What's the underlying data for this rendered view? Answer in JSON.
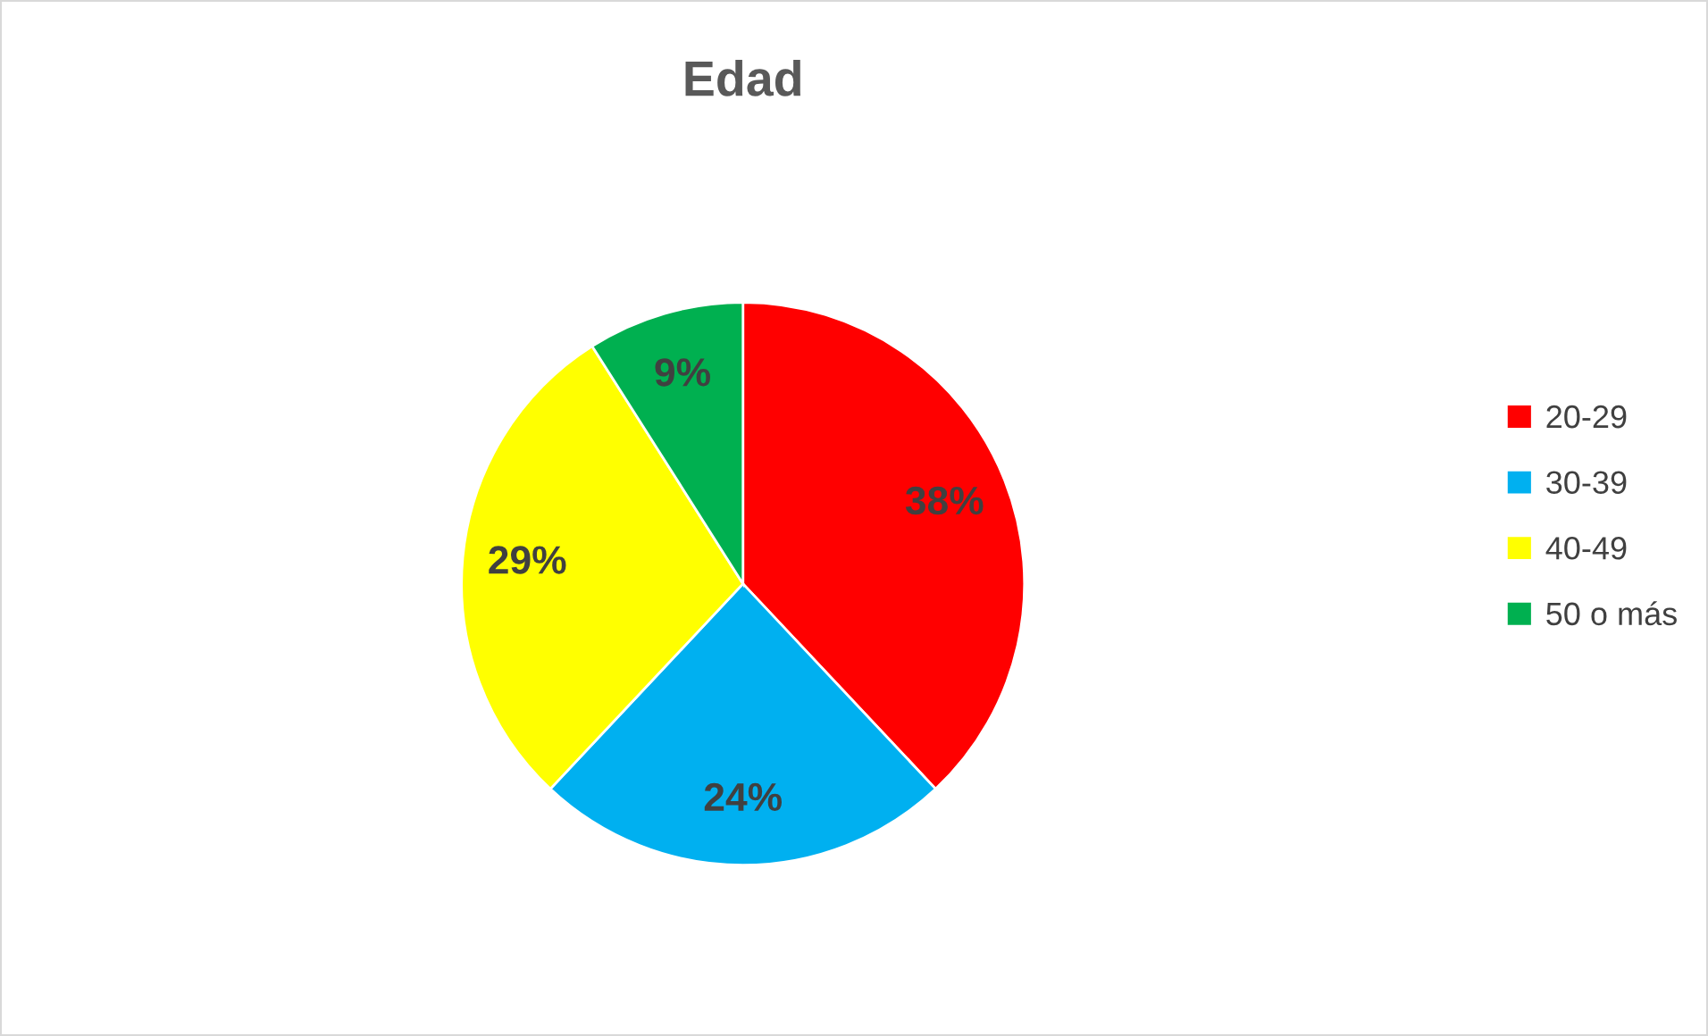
{
  "chart_data": {
    "type": "pie",
    "title": "Edad",
    "categories": [
      "20-29",
      "30-39",
      "40-49",
      "50 o más"
    ],
    "values": [
      38,
      24,
      29,
      9
    ],
    "colors": [
      "#ff0000",
      "#00b0f0",
      "#ffff00",
      "#00b050"
    ],
    "value_labels": [
      "38%",
      "24%",
      "29%",
      "9%"
    ],
    "legend": "right"
  }
}
